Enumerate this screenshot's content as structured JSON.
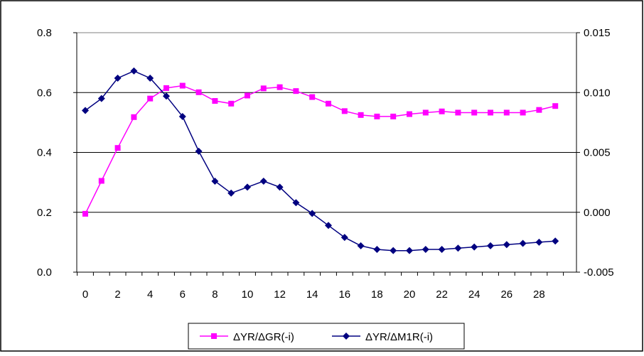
{
  "chart_data": {
    "type": "line",
    "x": [
      0,
      1,
      2,
      3,
      4,
      5,
      6,
      7,
      8,
      9,
      10,
      11,
      12,
      13,
      14,
      15,
      16,
      17,
      18,
      19,
      20,
      21,
      22,
      23,
      24,
      25,
      26,
      27,
      28,
      29
    ],
    "x_tick_labels": [
      "0",
      "2",
      "4",
      "6",
      "8",
      "10",
      "12",
      "14",
      "16",
      "18",
      "20",
      "22",
      "24",
      "26",
      "28"
    ],
    "y_left_ticks": [
      "0.0",
      "0.2",
      "0.4",
      "0.6",
      "0.8"
    ],
    "y_right_ticks": [
      "-0.005",
      "0.000",
      "0.005",
      "0.010",
      "0.015"
    ],
    "y_left_range": [
      0,
      0.8
    ],
    "y_right_range": [
      -0.005,
      0.015
    ],
    "grid": true,
    "legend_position": "bottom",
    "series": [
      {
        "name": "ΔYR/ΔGR(-i)",
        "axis": "left",
        "color": "#ff00ff",
        "marker": "square",
        "values": [
          0.195,
          0.305,
          0.415,
          0.518,
          0.58,
          0.615,
          0.623,
          0.601,
          0.572,
          0.563,
          0.59,
          0.614,
          0.618,
          0.605,
          0.585,
          0.563,
          0.538,
          0.525,
          0.52,
          0.52,
          0.528,
          0.533,
          0.537,
          0.533,
          0.533,
          0.533,
          0.533,
          0.533,
          0.542,
          0.555
        ]
      },
      {
        "name": "ΔYR/ΔM1R(-i)",
        "axis": "right",
        "color": "#000080",
        "marker": "diamond",
        "values": [
          0.0085,
          0.0095,
          0.0112,
          0.0118,
          0.0112,
          0.0097,
          0.008,
          0.0051,
          0.0026,
          0.0016,
          0.0021,
          0.0026,
          0.0021,
          0.0008,
          -0.0001,
          -0.0011,
          -0.0021,
          -0.0028,
          -0.0031,
          -0.0032,
          -0.0032,
          -0.0031,
          -0.0031,
          -0.003,
          -0.0029,
          -0.0028,
          -0.0027,
          -0.0026,
          -0.0025,
          -0.0024
        ]
      }
    ]
  }
}
